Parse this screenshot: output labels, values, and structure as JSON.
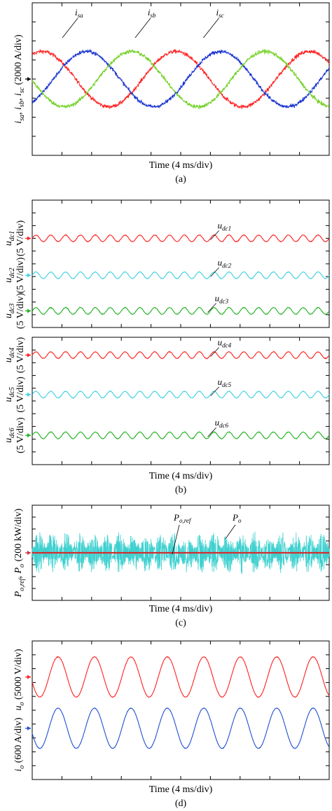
{
  "chart_data": [
    {
      "id": "a",
      "type": "line",
      "caption": "(a)",
      "xlabel": "Time (4 ms/div)",
      "ylabel": "i_sa, i_sb, i_sc (2000 A/div)",
      "ylabel_parts": {
        "i1": "i",
        "s1": "sa",
        ",1": ", ",
        "i2": "i",
        "s2": "sb",
        ",2": ", ",
        "i3": "i",
        "s3": "sc",
        "unit": " (2000 A/div)"
      },
      "x_divisions": 10,
      "y_divisions": 8,
      "series": [
        {
          "name": "i_sa",
          "label": "i",
          "label_sub": "sa",
          "color": "#ff2020",
          "amplitude_div": 1.45,
          "offset_div": 0.0,
          "period_div": 4.5,
          "phase_deg": 0
        },
        {
          "name": "i_sb",
          "label": "i",
          "label_sub": "sb",
          "color": "#1530d0",
          "amplitude_div": 1.45,
          "offset_div": 0.0,
          "period_div": 4.5,
          "phase_deg": -120
        },
        {
          "name": "i_sc",
          "label": "i",
          "label_sub": "sc",
          "color": "#70d020",
          "amplitude_div": 1.45,
          "offset_div": 0.0,
          "period_div": 4.5,
          "phase_deg": 120
        }
      ]
    },
    {
      "id": "b1",
      "type": "line",
      "ylabels": [
        {
          "base": "u",
          "sub": "dc1",
          "unit": "(5 V/div)"
        },
        {
          "base": "u",
          "sub": "dc2",
          "unit": "(5 V/div)"
        },
        {
          "base": "u",
          "sub": "dc3",
          "unit": "(5 V/div)"
        }
      ],
      "x_divisions": 10,
      "series": [
        {
          "name": "u_dc1",
          "label": "u",
          "label_sub": "dc1",
          "color": "#ff2020",
          "level_div": 3.0,
          "ripple_div": 0.1,
          "cycles": 20
        },
        {
          "name": "u_dc2",
          "label": "u",
          "label_sub": "dc2",
          "color": "#40d0e0",
          "level_div": 5.9,
          "ripple_div": 0.1,
          "cycles": 20
        },
        {
          "name": "u_dc3",
          "label": "u",
          "label_sub": "dc3",
          "color": "#20b020",
          "level_div": 8.7,
          "ripple_div": 0.1,
          "cycles": 20
        }
      ]
    },
    {
      "id": "b2",
      "type": "line",
      "caption": "(b)",
      "xlabel": "Time (4 ms/div)",
      "ylabels": [
        {
          "base": "u",
          "sub": "dc4",
          "unit": "(5 V/div)"
        },
        {
          "base": "u",
          "sub": "dc5",
          "unit": "(5 V/div)"
        },
        {
          "base": "u",
          "sub": "dc6",
          "unit": "(5 V/div)"
        }
      ],
      "x_divisions": 10,
      "series": [
        {
          "name": "u_dc4",
          "label": "u",
          "label_sub": "dc4",
          "color": "#ff2020",
          "level_div": 1.4,
          "ripple_div": 0.1,
          "cycles": 20
        },
        {
          "name": "u_dc5",
          "label": "u",
          "label_sub": "dc5",
          "color": "#40d0e0",
          "level_div": 4.5,
          "ripple_div": 0.1,
          "cycles": 20
        },
        {
          "name": "u_dc6",
          "label": "u",
          "label_sub": "dc6",
          "color": "#20b020",
          "level_div": 7.7,
          "ripple_div": 0.1,
          "cycles": 20
        }
      ]
    },
    {
      "id": "c",
      "type": "line",
      "caption": "(c)",
      "xlabel": "Time (4 ms/div)",
      "ylabel_parts": {
        "p1": "P",
        "s1": "o,ref",
        ",1": ", ",
        "p2": "P",
        "s2": "o",
        "unit": " (200 kW/div)"
      },
      "x_divisions": 10,
      "series": [
        {
          "name": "P_o,ref",
          "label": "P",
          "label_sub": "o,ref",
          "color": "#d03030",
          "level_div": 4.0
        },
        {
          "name": "P_o",
          "label": "P",
          "label_sub": "o",
          "color": "#40d0d0",
          "level_div": 4.0,
          "amplitude_div": 1.9,
          "cycles": 22
        }
      ]
    },
    {
      "id": "d",
      "type": "line",
      "caption": "(d)",
      "xlabel": "Time (4 ms/div)",
      "ylabel_parts": {
        "i": "i",
        "isub": "o",
        "iunit": " (600 A/div)",
        "u": "u",
        "usub": "o",
        "uunit": " (5000 V/div)"
      },
      "x_divisions": 10,
      "series": [
        {
          "name": "u_o",
          "color": "#ff2020",
          "offset_div": 2.6,
          "amplitude_div": 1.45,
          "cycles": 8.15
        },
        {
          "name": "i_o",
          "color": "#2050d0",
          "offset_div": 6.3,
          "amplitude_div": 1.45,
          "cycles": 8.15
        }
      ]
    }
  ]
}
